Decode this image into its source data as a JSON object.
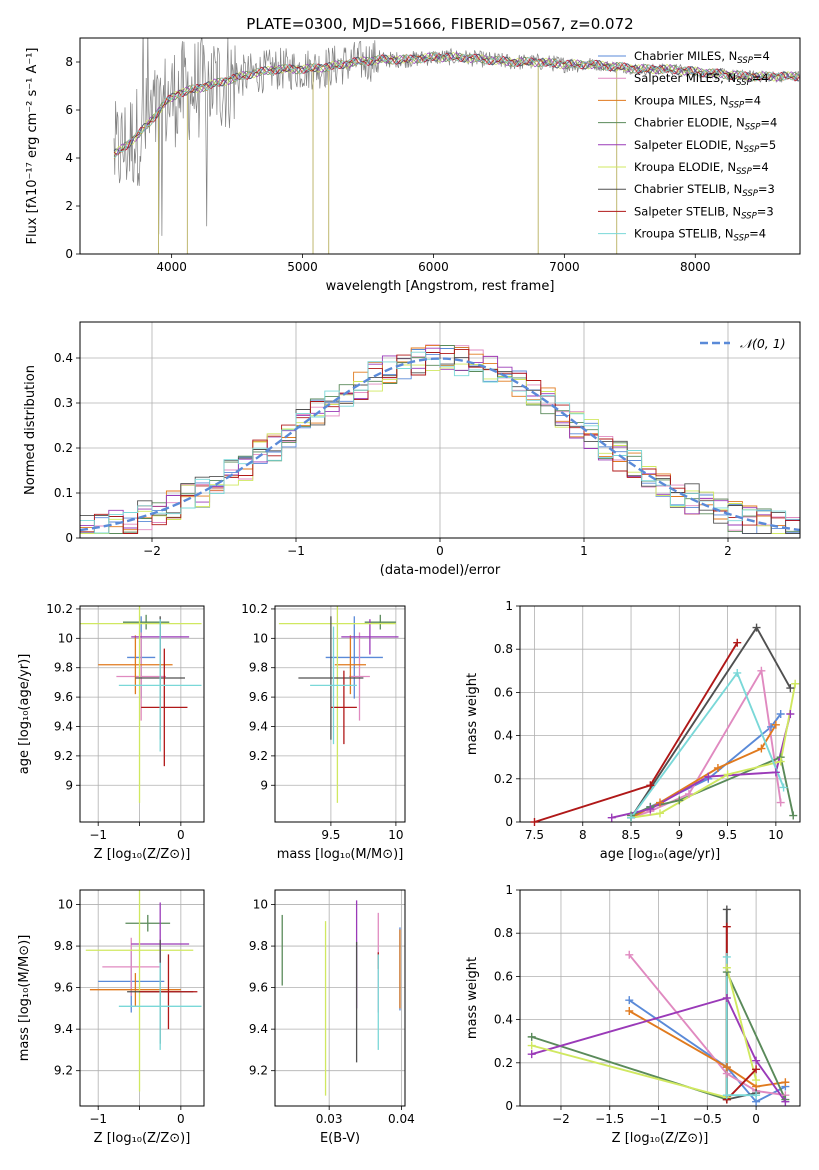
{
  "title": "PLATE=0300, MJD=51666, FIBERID=0567, z=0.072",
  "colors": [
    "#5a8ad8",
    "#e08ac0",
    "#e07a1e",
    "#5a8a5a",
    "#9a3ab8",
    "#d0e860",
    "#505050",
    "#b01818",
    "#7ad8d8"
  ],
  "chart_data": [
    {
      "id": "spectrum",
      "type": "line",
      "xlabel": "wavelength [Angstrom, rest frame]",
      "ylabel": "Flux [fλ10⁻¹⁷ erg cm⁻² s⁻¹ A⁻¹]",
      "xlim": [
        3300,
        8800
      ],
      "ylim": [
        0,
        9
      ],
      "xticks": [
        4000,
        5000,
        6000,
        7000,
        8000
      ],
      "yticks": [
        0,
        2,
        4,
        6,
        8
      ],
      "legend_position": "top-right",
      "legend": [
        "Chabrier MILES, N_SSP=4",
        "Salpeter MILES, N_SSP=4",
        "Kroupa MILES, N_SSP=4",
        "Chabrier ELODIE, N_SSP=4",
        "Salpeter ELODIE, N_SSP=5",
        "Kroupa ELODIE, N_SSP=4",
        "Chabrier STELIB, N_SSP=3",
        "Salpeter STELIB, N_SSP=3",
        "Kroupa STELIB, N_SSP=4"
      ],
      "data_color": "#808080",
      "continuum": {
        "x": [
          3550,
          3650,
          3750,
          3850,
          3950,
          4050,
          4200,
          4400,
          4600,
          4800,
          5000,
          5200,
          5400,
          5600,
          5800,
          6000,
          6200,
          6400,
          6600,
          6800,
          7000,
          7200,
          7400,
          7600,
          7800,
          8000,
          8200,
          8400,
          8600
        ],
        "y": [
          4.1,
          4.5,
          5.0,
          5.6,
          6.3,
          6.7,
          6.9,
          7.2,
          7.5,
          7.7,
          7.7,
          7.8,
          8.0,
          8.1,
          8.1,
          8.2,
          8.2,
          8.1,
          8.0,
          8.0,
          7.9,
          7.9,
          7.8,
          7.7,
          7.7,
          7.6,
          7.5,
          7.4,
          7.4
        ]
      }
    },
    {
      "id": "residuals",
      "type": "histogram",
      "xlabel": "(data-model)/error",
      "ylabel": "Normed distribution",
      "xlim": [
        -2.5,
        2.5
      ],
      "ylim": [
        0,
        0.48
      ],
      "xticks": [
        -2,
        -1,
        0,
        1,
        2
      ],
      "yticks": [
        0.0,
        0.1,
        0.2,
        0.3,
        0.4
      ],
      "grid": true,
      "legend_position": "top-right",
      "gaussian_label": "𝒩(0, 1)",
      "bin_width": 0.1,
      "bin_start": -2.5
    },
    {
      "id": "age_vs_Z",
      "type": "errorbar",
      "xlabel": "Z [log₁₀(Z/Z⊙)]",
      "ylabel": "age  [log₁₀(age/yr)]",
      "xlim": [
        -1.22,
        0.28
      ],
      "ylim": [
        8.75,
        10.22
      ],
      "xticks": [
        -1,
        -0.5,
        0
      ],
      "xticklabels": [
        "−1",
        "",
        "0"
      ],
      "yticks": [
        9.0,
        9.2,
        9.4,
        9.6,
        9.8,
        10.0,
        10.2
      ],
      "grid": true,
      "points": [
        {
          "x": -0.48,
          "xe": 0.17,
          "y": 9.87,
          "ye": 0.28
        },
        {
          "x": -0.48,
          "xe": 0.3,
          "y": 9.74,
          "ye": 0.3
        },
        {
          "x": -0.55,
          "xe": 0.45,
          "y": 9.82,
          "ye": 0.2
        },
        {
          "x": -0.42,
          "xe": 0.28,
          "y": 10.11,
          "ye": 0.05
        },
        {
          "x": -0.25,
          "xe": 0.35,
          "y": 10.01,
          "ye": 0.12
        },
        {
          "x": -0.5,
          "xe": 0.75,
          "y": 10.1,
          "ye": 1.22
        },
        {
          "x": -0.25,
          "xe": 0.3,
          "y": 9.73,
          "ye": 0.42
        },
        {
          "x": -0.2,
          "xe": 0.28,
          "y": 9.53,
          "ye": 0.4
        },
        {
          "x": -0.25,
          "xe": 0.5,
          "y": 9.68,
          "ye": 0.45
        }
      ]
    },
    {
      "id": "age_vs_mass",
      "type": "errorbar",
      "xlabel": "mass [log₁₀(M/M⊙)]",
      "ylabel": "",
      "xlim": [
        9.07,
        10.07
      ],
      "ylim": [
        8.75,
        10.22
      ],
      "xticks": [
        9.5,
        10.0
      ],
      "yticks": [
        9.0,
        9.2,
        9.4,
        9.6,
        9.8,
        10.0,
        10.2
      ],
      "grid": true,
      "points": [
        {
          "x": 9.68,
          "xe": 0.22,
          "y": 9.87,
          "ye": 0.28
        },
        {
          "x": 9.72,
          "xe": 0.08,
          "y": 9.74,
          "ye": 0.3
        },
        {
          "x": 9.65,
          "xe": 0.12,
          "y": 9.82,
          "ye": 0.2
        },
        {
          "x": 9.88,
          "xe": 0.12,
          "y": 10.11,
          "ye": 0.05
        },
        {
          "x": 9.8,
          "xe": 0.22,
          "y": 10.01,
          "ye": 0.12
        },
        {
          "x": 9.55,
          "xe": 0.45,
          "y": 10.1,
          "ye": 1.22
        },
        {
          "x": 9.5,
          "xe": 0.25,
          "y": 9.73,
          "ye": 0.42
        },
        {
          "x": 9.6,
          "xe": 0.1,
          "y": 9.53,
          "ye": 0.25
        },
        {
          "x": 9.52,
          "xe": 0.18,
          "y": 9.68,
          "ye": 0.4
        }
      ]
    },
    {
      "id": "massweight_vs_age",
      "type": "line",
      "xlabel": "age  [log₁₀(age/yr)]",
      "ylabel": "mass weight",
      "xlim": [
        7.35,
        10.25
      ],
      "ylim": [
        0,
        1
      ],
      "xticks": [
        7.5,
        8.0,
        8.5,
        9.0,
        9.5,
        10.0
      ],
      "yticks": [
        0.0,
        0.2,
        0.4,
        0.6,
        0.8,
        1.0
      ],
      "grid": true,
      "series": [
        {
          "x": [
            8.5,
            8.7,
            9.3,
            9.95,
            10.05
          ],
          "y": [
            0.02,
            0.07,
            0.2,
            0.44,
            0.5
          ]
        },
        {
          "x": [
            8.5,
            8.7,
            9.1,
            9.85,
            10.05
          ],
          "y": [
            0.02,
            0.05,
            0.13,
            0.7,
            0.09
          ]
        },
        {
          "x": [
            8.5,
            8.8,
            9.4,
            9.85,
            10.0
          ],
          "y": [
            0.02,
            0.09,
            0.25,
            0.34,
            0.45
          ]
        },
        {
          "x": [
            8.5,
            8.7,
            9.0,
            10.05,
            10.18
          ],
          "y": [
            0.03,
            0.07,
            0.1,
            0.3,
            0.03
          ]
        },
        {
          "x": [
            8.3,
            8.7,
            9.3,
            10.0,
            10.15
          ],
          "y": [
            0.02,
            0.06,
            0.21,
            0.23,
            0.5
          ]
        },
        {
          "x": [
            8.5,
            8.8,
            9.5,
            10.05,
            10.2
          ],
          "y": [
            0.02,
            0.04,
            0.22,
            0.28,
            0.64
          ]
        },
        {
          "x": [
            8.5,
            9.8,
            10.15
          ],
          "y": [
            0.02,
            0.9,
            0.62
          ]
        },
        {
          "x": [
            7.5,
            8.7,
            9.6
          ],
          "y": [
            0.0,
            0.17,
            0.83
          ]
        },
        {
          "x": [
            8.5,
            9.6,
            10.08
          ],
          "y": [
            0.02,
            0.69,
            0.16
          ]
        }
      ]
    },
    {
      "id": "mass_vs_Z",
      "type": "errorbar",
      "xlabel": "Z [log₁₀(Z/Z⊙)]",
      "ylabel": "mass [log₁₀(M/M⊙)]",
      "xlim": [
        -1.22,
        0.28
      ],
      "ylim": [
        9.03,
        10.07
      ],
      "xticks": [
        -1,
        -0.5,
        0
      ],
      "xticklabels": [
        "−1",
        "",
        "0"
      ],
      "yticks": [
        9.2,
        9.4,
        9.6,
        9.8,
        10.0
      ],
      "grid": true,
      "points": [
        {
          "x": -0.6,
          "xe": 0.4,
          "y": 9.63,
          "ye": 0.15
        },
        {
          "x": -0.6,
          "xe": 0.35,
          "y": 9.7,
          "ye": 0.14
        },
        {
          "x": -0.55,
          "xe": 0.55,
          "y": 9.59,
          "ye": 0.08
        },
        {
          "x": -0.4,
          "xe": 0.27,
          "y": 9.91,
          "ye": 0.04
        },
        {
          "x": -0.25,
          "xe": 0.35,
          "y": 9.81,
          "ye": 0.2
        },
        {
          "x": -0.5,
          "xe": 0.65,
          "y": 9.78,
          "ye": 0.68
        },
        {
          "x": -0.25,
          "xe": 0.4,
          "y": 9.58,
          "ye": 0.25
        },
        {
          "x": -0.15,
          "xe": 0.35,
          "y": 9.58,
          "ye": 0.18
        },
        {
          "x": -0.25,
          "xe": 0.5,
          "y": 9.51,
          "ye": 0.21
        }
      ]
    },
    {
      "id": "mass_vs_EBV",
      "type": "errorbar",
      "xlabel": "E(B-V)",
      "ylabel": "",
      "xlim": [
        0.0225,
        0.0405
      ],
      "ylim": [
        9.03,
        10.07
      ],
      "xticks": [
        0.03,
        0.04
      ],
      "yticks": [
        9.2,
        9.4,
        9.6,
        9.8,
        10.0
      ],
      "grid": true,
      "points": [
        {
          "x": 0.0398,
          "xe": 0,
          "y": 9.69,
          "ye": 0.2
        },
        {
          "x": 0.0368,
          "xe": 0,
          "y": 9.72,
          "ye": 0.24
        },
        {
          "x": 0.0398,
          "xe": 0,
          "y": 9.69,
          "ye": 0.19
        },
        {
          "x": 0.0235,
          "xe": 0,
          "y": 9.78,
          "ye": 0.17
        },
        {
          "x": 0.0338,
          "xe": 0,
          "y": 9.76,
          "ye": 0.26
        },
        {
          "x": 0.0295,
          "xe": 0,
          "y": 9.5,
          "ye": 0.42
        },
        {
          "x": 0.0338,
          "xe": 0,
          "y": 9.53,
          "ye": 0.29
        },
        {
          "x": 0.0368,
          "xe": 0,
          "y": 9.73,
          "ye": 0.04
        },
        {
          "x": 0.0368,
          "xe": 0,
          "y": 9.53,
          "ye": 0.23
        }
      ]
    },
    {
      "id": "massweight_vs_Z",
      "type": "line",
      "xlabel": "Z [log₁₀(Z/Z⊙)]",
      "ylabel": "mass weight",
      "xlim": [
        -2.42,
        0.45
      ],
      "ylim": [
        0,
        1
      ],
      "xticks": [
        -2.0,
        -1.5,
        -1.0,
        -0.5,
        0.0
      ],
      "yticks": [
        0.0,
        0.2,
        0.4,
        0.6,
        0.8,
        1.0
      ],
      "grid": true,
      "series": [
        {
          "x": [
            -1.3,
            -0.3,
            0.0,
            0.3
          ],
          "y": [
            0.49,
            0.18,
            0.02,
            0.09
          ]
        },
        {
          "x": [
            -1.3,
            -0.3,
            0.0,
            0.3
          ],
          "y": [
            0.7,
            0.15,
            0.07,
            0.05
          ]
        },
        {
          "x": [
            -1.3,
            -0.3,
            0.0,
            0.3
          ],
          "y": [
            0.44,
            0.18,
            0.09,
            0.11
          ]
        },
        {
          "x": [
            -2.3,
            -0.3,
            -0.3,
            0.3
          ],
          "y": [
            0.32,
            0.03,
            0.62,
            0.03
          ]
        },
        {
          "x": [
            -2.3,
            -0.3,
            0.0,
            0.3
          ],
          "y": [
            0.24,
            0.5,
            0.21,
            0.02
          ]
        },
        {
          "x": [
            -2.3,
            -0.3,
            -0.3,
            0.0
          ],
          "y": [
            0.28,
            0.04,
            0.64,
            0.12
          ]
        },
        {
          "x": [
            -0.3,
            -0.3,
            0.0
          ],
          "y": [
            0.91,
            0.03,
            0.06
          ]
        },
        {
          "x": [
            -0.3,
            -0.3,
            0.0
          ],
          "y": [
            0.83,
            0.03,
            0.17
          ]
        },
        {
          "x": [
            -0.3,
            -0.3,
            0.0
          ],
          "y": [
            0.69,
            0.05,
            0.05
          ]
        }
      ]
    }
  ]
}
